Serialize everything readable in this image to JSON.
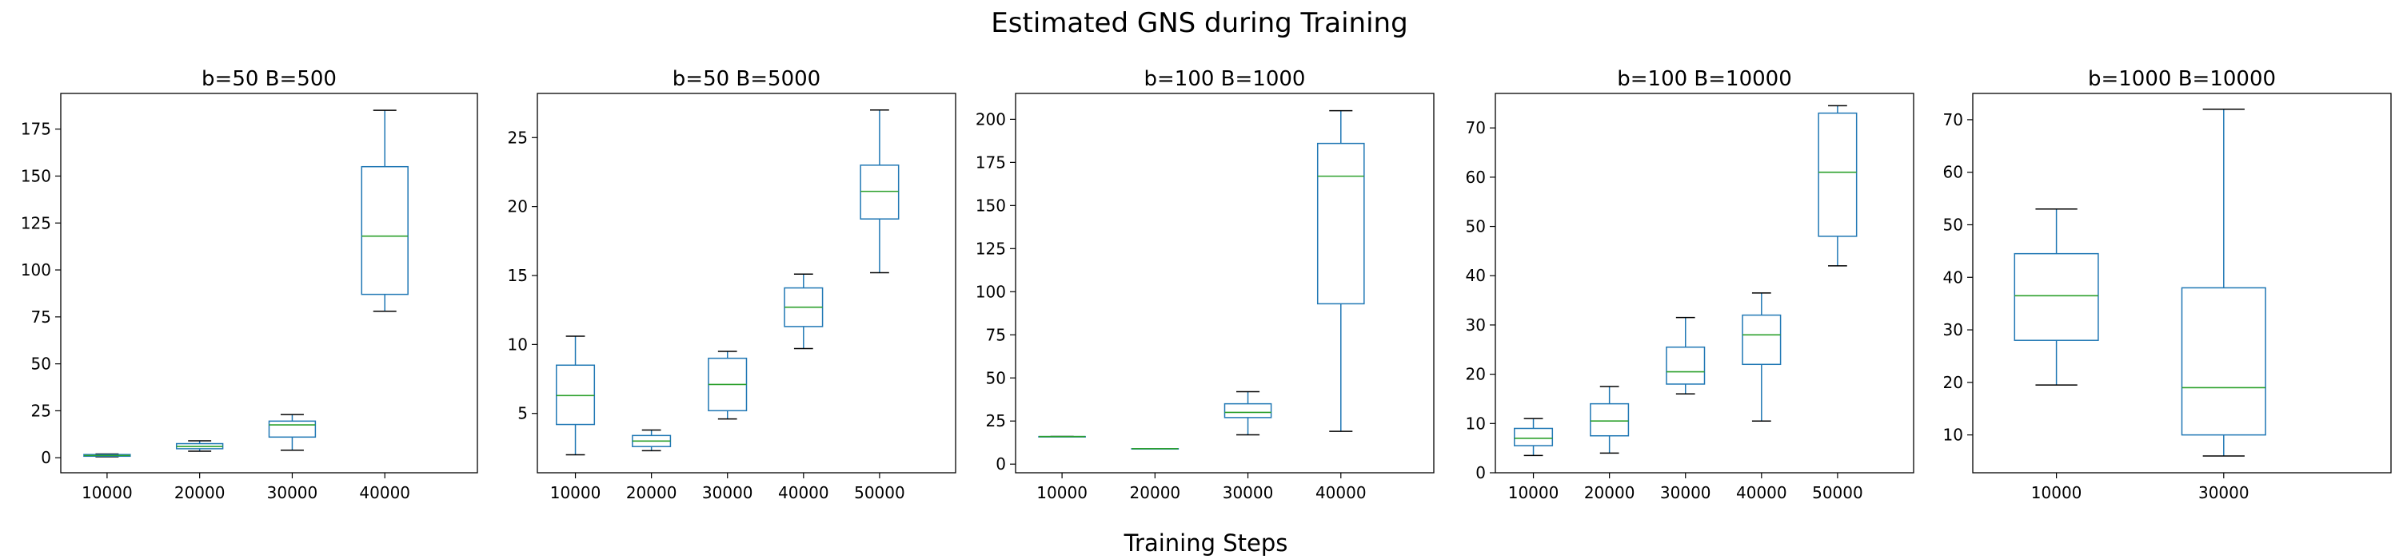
{
  "figure": {
    "title": "Estimated GNS during Training",
    "xlabel": "Training Steps",
    "box_color": "#1f77b4",
    "median_color": "#2ca02c",
    "whisker_cap_color": "#000000"
  },
  "chart_data": [
    {
      "type": "box",
      "title": "b=50  B=500",
      "xlabel": "",
      "ylabel": "",
      "ylim": [
        -8,
        194
      ],
      "yticks": [
        0,
        25,
        50,
        75,
        100,
        125,
        150,
        175
      ],
      "categories": [
        "10000",
        "20000",
        "30000",
        "40000"
      ],
      "boxes": [
        {
          "min": 0.5,
          "q1": 0.8,
          "median": 1.2,
          "q3": 1.7,
          "max": 2.0
        },
        {
          "min": 3.5,
          "q1": 4.8,
          "median": 6.0,
          "q3": 7.5,
          "max": 9.0
        },
        {
          "min": 4.0,
          "q1": 11.0,
          "median": 17.5,
          "q3": 19.5,
          "max": 23.0
        },
        {
          "min": 78.0,
          "q1": 87.0,
          "median": 118.0,
          "q3": 155.0,
          "max": 185.0
        }
      ]
    },
    {
      "type": "box",
      "title": "b=50  B=5000",
      "xlabel": "",
      "ylabel": "",
      "ylim": [
        0.7,
        28.2
      ],
      "yticks": [
        5,
        10,
        15,
        20,
        25
      ],
      "categories": [
        "10000",
        "20000",
        "30000",
        "40000",
        "50000"
      ],
      "boxes": [
        {
          "min": 2.0,
          "q1": 4.2,
          "median": 6.3,
          "q3": 8.5,
          "max": 10.6
        },
        {
          "min": 2.3,
          "q1": 2.6,
          "median": 3.0,
          "q3": 3.4,
          "max": 3.8
        },
        {
          "min": 4.6,
          "q1": 5.2,
          "median": 7.1,
          "q3": 9.0,
          "max": 9.5
        },
        {
          "min": 9.7,
          "q1": 11.3,
          "median": 12.7,
          "q3": 14.1,
          "max": 15.1
        },
        {
          "min": 15.2,
          "q1": 19.1,
          "median": 21.1,
          "q3": 23.0,
          "max": 27.0
        }
      ]
    },
    {
      "type": "box",
      "title": "b=100  B=1000",
      "xlabel": "",
      "ylabel": "",
      "ylim": [
        -5,
        215
      ],
      "yticks": [
        0,
        25,
        50,
        75,
        100,
        125,
        150,
        175,
        200
      ],
      "categories": [
        "10000",
        "20000",
        "30000",
        "40000"
      ],
      "boxes": [
        {
          "min": 16.0,
          "q1": 16.0,
          "median": 16.0,
          "q3": 16.0,
          "max": 16.0
        },
        {
          "min": 9.0,
          "q1": 9.0,
          "median": 9.0,
          "q3": 9.0,
          "max": 9.0
        },
        {
          "min": 17.0,
          "q1": 27.0,
          "median": 30.0,
          "q3": 35.0,
          "max": 42.0
        },
        {
          "min": 19.0,
          "q1": 93.0,
          "median": 167.0,
          "q3": 186.0,
          "max": 205.0
        }
      ]
    },
    {
      "type": "box",
      "title": "b=100  B=10000",
      "xlabel": "",
      "ylabel": "",
      "ylim": [
        0,
        77
      ],
      "yticks": [
        0,
        10,
        20,
        30,
        40,
        50,
        60,
        70
      ],
      "categories": [
        "10000",
        "20000",
        "30000",
        "40000",
        "50000"
      ],
      "boxes": [
        {
          "min": 3.5,
          "q1": 5.5,
          "median": 7.0,
          "q3": 9.0,
          "max": 11.0
        },
        {
          "min": 4.0,
          "q1": 7.5,
          "median": 10.5,
          "q3": 14.0,
          "max": 17.5
        },
        {
          "min": 16.0,
          "q1": 18.0,
          "median": 20.5,
          "q3": 25.5,
          "max": 31.5
        },
        {
          "min": 10.5,
          "q1": 22.0,
          "median": 28.0,
          "q3": 32.0,
          "max": 36.5
        },
        {
          "min": 42.0,
          "q1": 48.0,
          "median": 61.0,
          "q3": 73.0,
          "max": 74.5
        }
      ]
    },
    {
      "type": "box",
      "title": "b=1000  B=10000",
      "xlabel": "",
      "ylabel": "",
      "ylim": [
        2.8,
        75
      ],
      "yticks": [
        10,
        20,
        30,
        40,
        50,
        60,
        70
      ],
      "categories": [
        "10000",
        "30000"
      ],
      "boxes": [
        {
          "min": 19.5,
          "q1": 28.0,
          "median": 36.5,
          "q3": 44.5,
          "max": 53.0
        },
        {
          "min": 6.0,
          "q1": 10.0,
          "median": 19.0,
          "q3": 38.0,
          "max": 72.0
        }
      ]
    }
  ]
}
